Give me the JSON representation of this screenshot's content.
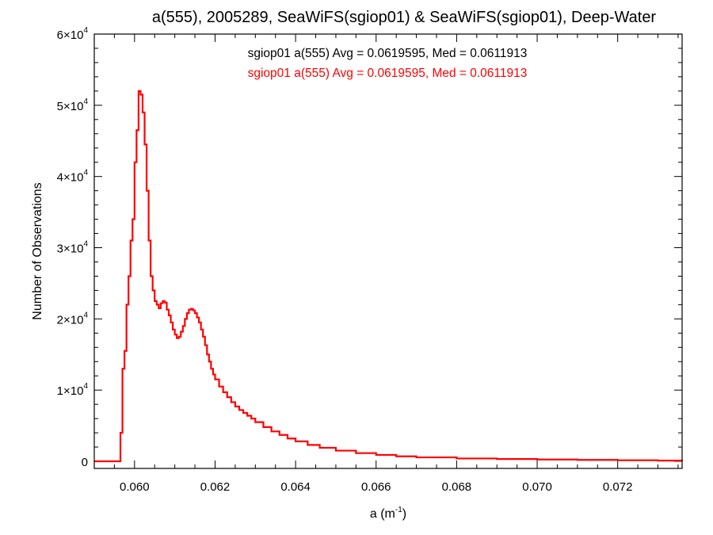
{
  "chart_data": {
    "type": "line",
    "title": "a(555), 2005289, SeaWiFS(sgiop01) & SeaWiFS(sgiop01), Deep-Water",
    "xlabel": {
      "base": "a (m",
      "sup": "-1",
      "tail": ")"
    },
    "ylabel": "Number of Observations",
    "xlim": [
      0.059,
      0.0736
    ],
    "ylim": [
      -1000,
      60000
    ],
    "x_ticks": [
      {
        "value": 0.06,
        "label": "0.060"
      },
      {
        "value": 0.062,
        "label": "0.062"
      },
      {
        "value": 0.064,
        "label": "0.064"
      },
      {
        "value": 0.066,
        "label": "0.066"
      },
      {
        "value": 0.068,
        "label": "0.068"
      },
      {
        "value": 0.07,
        "label": "0.070"
      },
      {
        "value": 0.072,
        "label": "0.072"
      }
    ],
    "y_ticks": [
      {
        "value": 0,
        "mant": "0",
        "exp": ""
      },
      {
        "value": 10000,
        "mant": "1×10",
        "exp": "4"
      },
      {
        "value": 20000,
        "mant": "2×10",
        "exp": "4"
      },
      {
        "value": 30000,
        "mant": "3×10",
        "exp": "4"
      },
      {
        "value": 40000,
        "mant": "4×10",
        "exp": "4"
      },
      {
        "value": 50000,
        "mant": "5×10",
        "exp": "4"
      },
      {
        "value": 60000,
        "mant": "6×10",
        "exp": "4"
      }
    ],
    "annotations": [
      {
        "text": "sgiop01 a(555) Avg = 0.0619595, Med = 0.0611913",
        "color": "#000000"
      },
      {
        "text": "sgiop01 a(555) Avg = 0.0619595, Med = 0.0611913",
        "color": "#ff0000"
      }
    ],
    "series": [
      {
        "name": "sgiop01 a(555)",
        "color": "#ff0000",
        "style": "step",
        "x": [
          0.059,
          0.0596,
          0.05965,
          0.0597,
          0.05975,
          0.0598,
          0.05985,
          0.0599,
          0.05995,
          0.06,
          0.06005,
          0.0601,
          0.06015,
          0.0602,
          0.06025,
          0.0603,
          0.06035,
          0.0604,
          0.06045,
          0.0605,
          0.06055,
          0.0606,
          0.06065,
          0.0607,
          0.06075,
          0.0608,
          0.06085,
          0.0609,
          0.06095,
          0.061,
          0.06105,
          0.0611,
          0.06115,
          0.0612,
          0.06125,
          0.0613,
          0.06135,
          0.0614,
          0.06145,
          0.0615,
          0.06155,
          0.0616,
          0.06165,
          0.0617,
          0.06175,
          0.0618,
          0.06185,
          0.0619,
          0.06195,
          0.062,
          0.0621,
          0.0622,
          0.0623,
          0.0624,
          0.0625,
          0.0626,
          0.0627,
          0.0628,
          0.0629,
          0.063,
          0.0632,
          0.0634,
          0.0636,
          0.0638,
          0.064,
          0.0643,
          0.0646,
          0.065,
          0.0655,
          0.066,
          0.0665,
          0.067,
          0.068,
          0.069,
          0.07,
          0.071,
          0.072,
          0.073,
          0.0736
        ],
        "values": [
          0,
          0,
          4000,
          13000,
          15500,
          22000,
          26000,
          31000,
          34000,
          42000,
          46500,
          52000,
          51500,
          49000,
          44500,
          38000,
          31000,
          26000,
          24000,
          22500,
          22000,
          21500,
          22200,
          22500,
          22300,
          21300,
          20500,
          19500,
          18500,
          17800,
          17300,
          17500,
          18200,
          19000,
          20000,
          20800,
          21300,
          21400,
          21200,
          20800,
          20200,
          19500,
          18500,
          17500,
          16300,
          15000,
          14000,
          13000,
          12200,
          11500,
          10500,
          9700,
          9000,
          8300,
          7700,
          7200,
          6800,
          6400,
          6000,
          5500,
          4800,
          4200,
          3700,
          3200,
          2800,
          2300,
          1900,
          1500,
          1150,
          900,
          700,
          550,
          400,
          320,
          250,
          200,
          150,
          100,
          80
        ]
      }
    ]
  }
}
